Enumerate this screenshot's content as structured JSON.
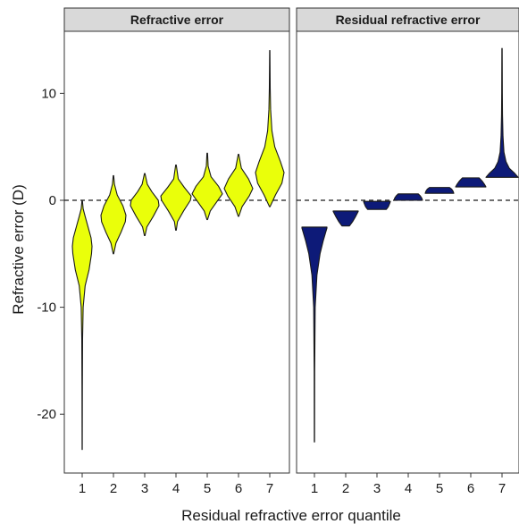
{
  "chart_data": {
    "type": "violin",
    "xlabel": "Residual refractive error quantile",
    "ylabel": "Refractive error (D)",
    "ylim": [
      -25.5,
      15.8
    ],
    "yticks": [
      10,
      0,
      -10,
      -20
    ],
    "ytick_labels": [
      "10",
      "0",
      "-10",
      "-20"
    ],
    "categories": [
      "1",
      "2",
      "3",
      "4",
      "5",
      "6",
      "7"
    ],
    "reference_line": {
      "y": 0,
      "style": "dashed"
    },
    "grid": false,
    "legend": "none",
    "panels": [
      {
        "title": "Refractive error",
        "fill": "#eaff0a",
        "violins": [
          {
            "min": -23.3,
            "max": 0.0,
            "profile": [
              [
                -23.3,
                0.01
              ],
              [
                -18,
                0.02
              ],
              [
                -13,
                0.04
              ],
              [
                -10,
                0.1
              ],
              [
                -8,
                0.3
              ],
              [
                -6.5,
                0.7
              ],
              [
                -5,
                0.95
              ],
              [
                -4.3,
                1
              ],
              [
                -3.5,
                0.9
              ],
              [
                -2.5,
                0.6
              ],
              [
                -1.5,
                0.3
              ],
              [
                -0.8,
                0.1
              ],
              [
                0,
                0.02
              ]
            ]
          },
          {
            "min": -5.0,
            "max": 2.3,
            "profile": [
              [
                -5,
                0.02
              ],
              [
                -4,
                0.2
              ],
              [
                -3,
                0.6
              ],
              [
                -2,
                0.95
              ],
              [
                -1.4,
                1
              ],
              [
                -0.5,
                0.75
              ],
              [
                0.5,
                0.3
              ],
              [
                1.5,
                0.08
              ],
              [
                2.3,
                0.02
              ]
            ]
          },
          {
            "min": -3.3,
            "max": 2.5,
            "profile": [
              [
                -3.3,
                0.02
              ],
              [
                -2.5,
                0.15
              ],
              [
                -1.5,
                0.6
              ],
              [
                -0.5,
                1
              ],
              [
                0,
                0.95
              ],
              [
                0.8,
                0.5
              ],
              [
                1.5,
                0.18
              ],
              [
                2.5,
                0.02
              ]
            ]
          },
          {
            "min": -2.8,
            "max": 3.3,
            "profile": [
              [
                -2.8,
                0.02
              ],
              [
                -2,
                0.1
              ],
              [
                -1,
                0.5
              ],
              [
                0,
                0.95
              ],
              [
                0.4,
                1
              ],
              [
                1.2,
                0.55
              ],
              [
                2,
                0.15
              ],
              [
                3.3,
                0.02
              ]
            ]
          },
          {
            "min": -1.8,
            "max": 4.4,
            "profile": [
              [
                -1.8,
                0.02
              ],
              [
                -1,
                0.2
              ],
              [
                0,
                0.7
              ],
              [
                0.6,
                1
              ],
              [
                1.3,
                0.75
              ],
              [
                2.2,
                0.25
              ],
              [
                3.2,
                0.06
              ],
              [
                4.4,
                0.02
              ]
            ]
          },
          {
            "min": -1.5,
            "max": 4.3,
            "profile": [
              [
                -1.5,
                0.02
              ],
              [
                -0.6,
                0.25
              ],
              [
                0.4,
                0.75
              ],
              [
                1.1,
                1
              ],
              [
                2,
                0.7
              ],
              [
                3,
                0.2
              ],
              [
                4.3,
                0.02
              ]
            ]
          },
          {
            "min": -0.6,
            "max": 14.0,
            "profile": [
              [
                -0.6,
                0.02
              ],
              [
                0.5,
                0.4
              ],
              [
                1.6,
                0.85
              ],
              [
                2.6,
                1
              ],
              [
                3.6,
                0.75
              ],
              [
                5,
                0.35
              ],
              [
                6.5,
                0.15
              ],
              [
                8.5,
                0.06
              ],
              [
                10.5,
                0.03
              ],
              [
                14,
                0.01
              ]
            ]
          }
        ]
      },
      {
        "title": "Residual refractive error",
        "fill": "#0d1a78",
        "violins": [
          {
            "min": -22.6,
            "max": -2.5,
            "profile": [
              [
                -22.6,
                0.01
              ],
              [
                -16,
                0.02
              ],
              [
                -10,
                0.06
              ],
              [
                -7,
                0.2
              ],
              [
                -5,
                0.45
              ],
              [
                -3.8,
                0.7
              ],
              [
                -3,
                0.9
              ],
              [
                -2.6,
                1
              ],
              [
                -2.5,
                1
              ]
            ]
          },
          {
            "min": -2.4,
            "max": -1.0,
            "profile": [
              [
                -2.4,
                0.3
              ],
              [
                -2,
                0.55
              ],
              [
                -1.5,
                0.8
              ],
              [
                -1.05,
                1
              ],
              [
                -1.0,
                1
              ]
            ]
          },
          {
            "min": -0.85,
            "max": -0.1,
            "profile": [
              [
                -0.85,
                0.7
              ],
              [
                -0.6,
                0.85
              ],
              [
                -0.3,
                0.95
              ],
              [
                -0.12,
                1
              ],
              [
                -0.1,
                1
              ]
            ]
          },
          {
            "min": 0.0,
            "max": 0.6,
            "profile": [
              [
                0,
                1
              ],
              [
                0.2,
                0.95
              ],
              [
                0.4,
                0.85
              ],
              [
                0.6,
                0.7
              ]
            ]
          },
          {
            "min": 0.65,
            "max": 1.2,
            "profile": [
              [
                0.65,
                1
              ],
              [
                0.85,
                0.95
              ],
              [
                1.05,
                0.85
              ],
              [
                1.2,
                0.7
              ]
            ]
          },
          {
            "min": 1.25,
            "max": 2.1,
            "profile": [
              [
                1.25,
                1
              ],
              [
                1.5,
                0.9
              ],
              [
                1.8,
                0.75
              ],
              [
                2.1,
                0.55
              ]
            ]
          },
          {
            "min": 2.15,
            "max": 14.2,
            "profile": [
              [
                2.15,
                1
              ],
              [
                2.5,
                0.8
              ],
              [
                3,
                0.45
              ],
              [
                3.6,
                0.25
              ],
              [
                4.5,
                0.12
              ],
              [
                6,
                0.06
              ],
              [
                8,
                0.03
              ],
              [
                10,
                0.02
              ],
              [
                14.2,
                0.01
              ]
            ]
          }
        ]
      }
    ]
  }
}
